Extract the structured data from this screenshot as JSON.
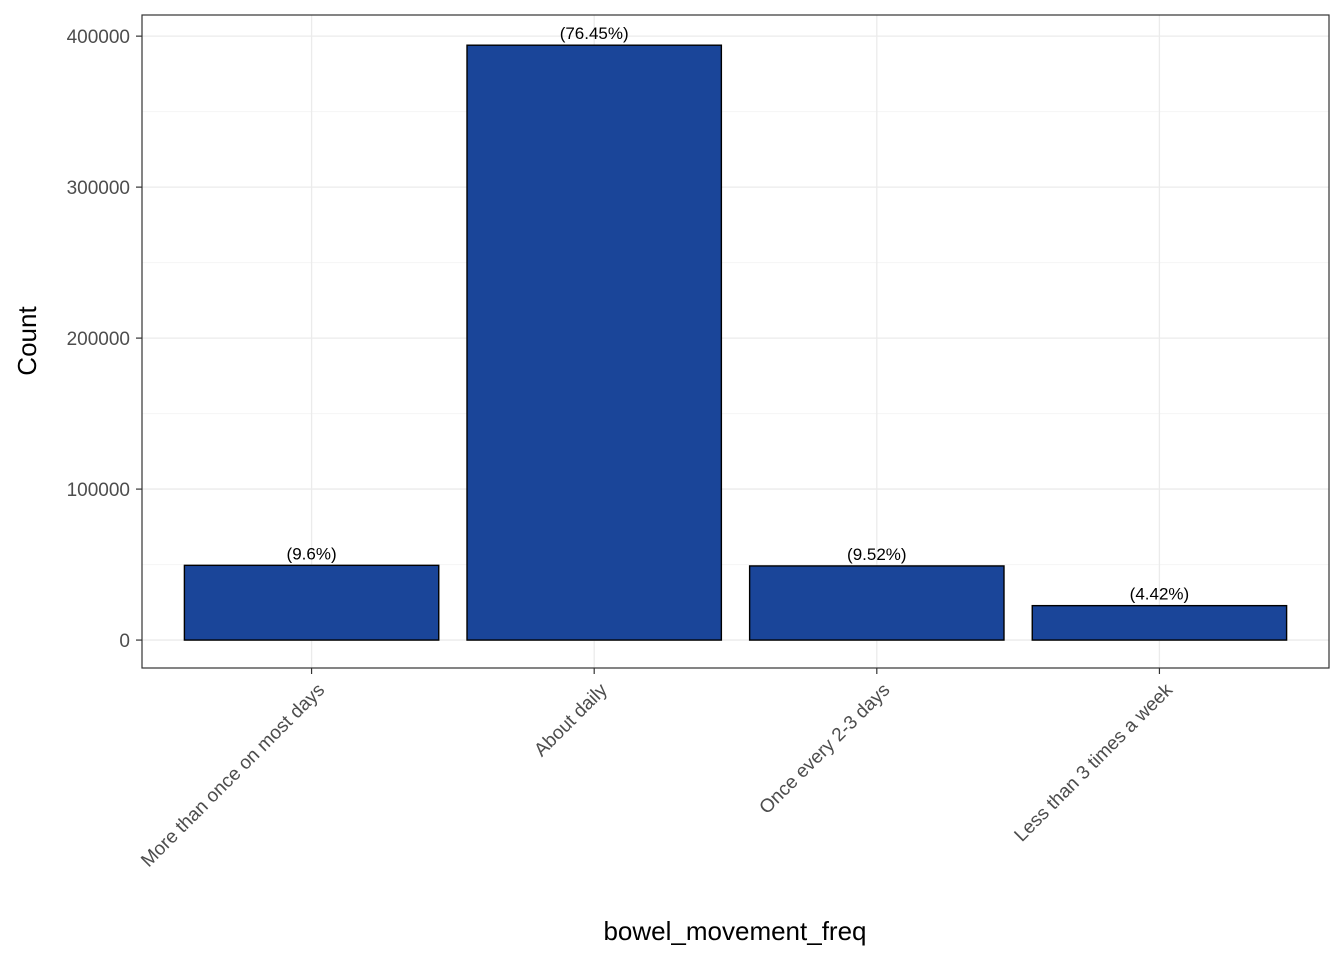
{
  "chart_data": {
    "type": "bar",
    "categories": [
      "More than once on most days",
      "About daily",
      "Once every 2-3 days",
      "Less than 3 times a week"
    ],
    "values": [
      49500,
      394000,
      49100,
      22800
    ],
    "data_labels": [
      "(9.6%)",
      "(76.45%)",
      "(9.52%)",
      "(4.42%)"
    ],
    "xlabel": "bowel_movement_freq",
    "ylabel": "Count",
    "ylim": [
      -18500,
      414000
    ],
    "yticks": [
      0,
      100000,
      200000,
      300000,
      400000
    ],
    "ytick_labels": [
      "0",
      "100000",
      "200000",
      "300000",
      "400000"
    ],
    "grid": true,
    "colors": {
      "bar_fill": "#1a4599",
      "bar_stroke": "#000000",
      "grid_major": "#ebebeb",
      "grid_minor": "#f5f5f5",
      "panel_border": "#333333"
    }
  }
}
